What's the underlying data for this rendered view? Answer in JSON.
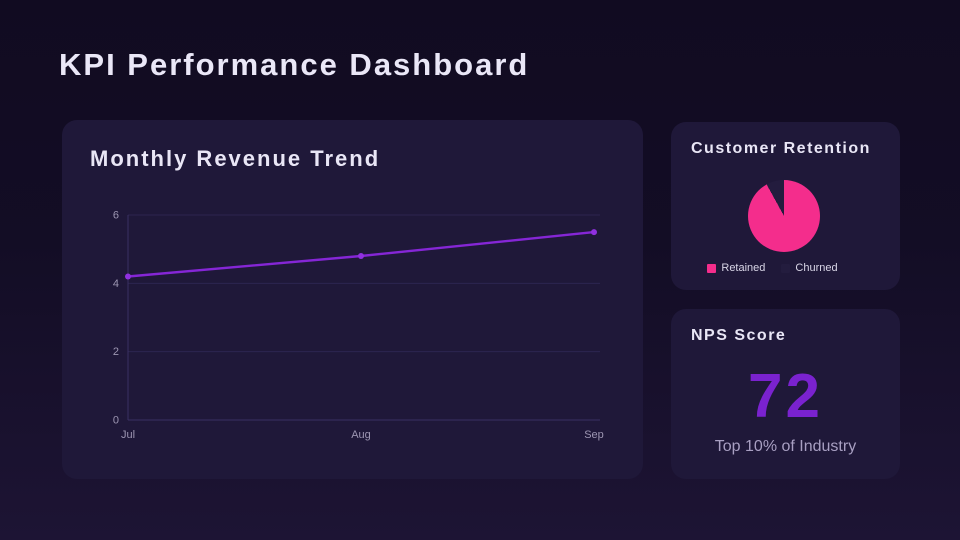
{
  "page": {
    "title": "KPI Performance Dashboard"
  },
  "cards": {
    "revenue": {
      "title": "Monthly Revenue Trend"
    },
    "retention": {
      "title": "Customer Retention"
    },
    "nps": {
      "title": "NPS Score",
      "value": "72",
      "subtitle": "Top 10% of Industry",
      "value_color": "#7a22cf"
    }
  },
  "colors": {
    "background_top": "#110b21",
    "background_bottom": "#1d1434",
    "card": "#1f1839",
    "title_text": "#eae7f7",
    "axis_text": "#9d96b2",
    "gridline": "#2c2550",
    "axis_line": "#3a3162",
    "line": "#8526d6",
    "point": "#9030e0",
    "pie_retained": "#f42d8c",
    "pie_churned": "#231c3e",
    "legend_text": "#d8d5e6",
    "nps_value": "#7a22cf",
    "nps_subtitle": "#a89fc2"
  },
  "chart_data": [
    {
      "type": "line",
      "title": "Monthly Revenue Trend",
      "x": [
        "Jul",
        "Aug",
        "Sep"
      ],
      "series": [
        {
          "name": "Revenue",
          "values": [
            4.2,
            4.8,
            5.5
          ],
          "color": "#8526d6",
          "point_color": "#9030e0"
        }
      ],
      "xlabel": "",
      "ylabel": "",
      "ylim": [
        0,
        6
      ],
      "yticks": [
        0,
        2,
        4,
        6
      ],
      "grid": true,
      "legend_position": "none"
    },
    {
      "type": "pie",
      "title": "Customer Retention",
      "labels": [
        "Retained",
        "Churned"
      ],
      "values": [
        92,
        8
      ],
      "colors": [
        "#f42d8c",
        "#231c3e"
      ],
      "start_angle_deg": 0,
      "direction": "clockwise",
      "legend_position": "bottom"
    }
  ]
}
